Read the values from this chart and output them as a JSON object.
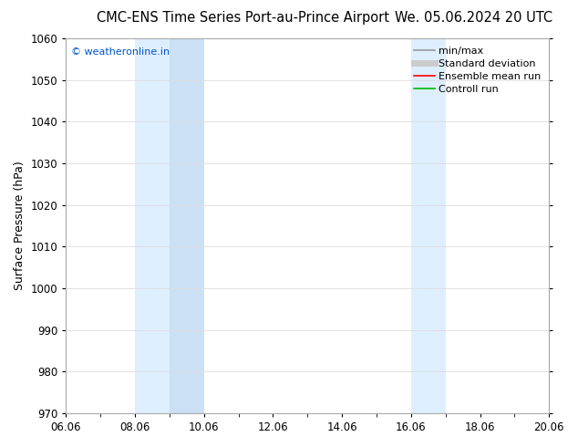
{
  "title_left": "CMC-ENS Time Series Port-au-Prince Airport",
  "title_right": "We. 05.06.2024 20 UTC",
  "ylabel": "Surface Pressure (hPa)",
  "ylim": [
    970,
    1060
  ],
  "yticks": [
    970,
    980,
    990,
    1000,
    1010,
    1020,
    1030,
    1040,
    1050,
    1060
  ],
  "xtick_labels": [
    "06.06",
    "08.06",
    "10.06",
    "12.06",
    "14.06",
    "16.06",
    "18.06",
    "20.06"
  ],
  "xtick_positions": [
    0,
    2,
    4,
    6,
    8,
    10,
    12,
    14
  ],
  "xlim": [
    0,
    14
  ],
  "shaded_bands": [
    {
      "xstart": 2.0,
      "xend": 3.0,
      "color": "#ddeeff"
    },
    {
      "xstart": 3.0,
      "xend": 4.0,
      "color": "#cce0f5"
    },
    {
      "xstart": 10.0,
      "xend": 11.0,
      "color": "#ddeeff"
    }
  ],
  "watermark": "© weatheronline.in",
  "watermark_color": "#0055cc",
  "legend_items": [
    {
      "label": "min/max",
      "color": "#999999",
      "lw": 1.2
    },
    {
      "label": "Standard deviation",
      "color": "#cccccc",
      "lw": 5
    },
    {
      "label": "Ensemble mean run",
      "color": "#ff0000",
      "lw": 1.2
    },
    {
      "label": "Controll run",
      "color": "#00bb00",
      "lw": 1.2
    }
  ],
  "background_color": "#ffffff",
  "plot_bg_color": "#ffffff",
  "grid_color": "#dddddd",
  "title_fontsize": 10.5,
  "tick_fontsize": 8.5,
  "ylabel_fontsize": 9,
  "legend_fontsize": 8,
  "watermark_fontsize": 8
}
